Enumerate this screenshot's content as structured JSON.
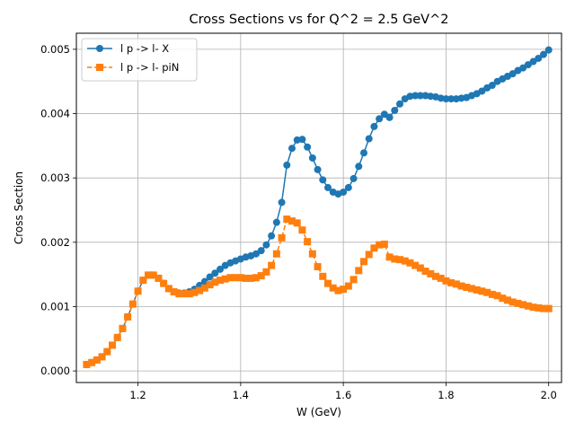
{
  "chart_data": {
    "type": "line",
    "title": "Cross Sections vs  for Q^2 = 2.5 GeV^2",
    "xlabel": "W (GeV)",
    "ylabel": "Cross Section",
    "xlim": [
      1.08,
      2.025
    ],
    "ylim": [
      -0.00018,
      0.00525
    ],
    "grid": true,
    "legend_position": "top-left",
    "x_ticks": [
      {
        "value": 1.2,
        "label": "1.2"
      },
      {
        "value": 1.4,
        "label": "1.4"
      },
      {
        "value": 1.6,
        "label": "1.6"
      },
      {
        "value": 1.8,
        "label": "1.8"
      },
      {
        "value": 2.0,
        "label": "2.0"
      }
    ],
    "y_ticks": [
      {
        "value": 0.0,
        "label": "0.000"
      },
      {
        "value": 0.001,
        "label": "0.001"
      },
      {
        "value": 0.002,
        "label": "0.002"
      },
      {
        "value": 0.003,
        "label": "0.003"
      },
      {
        "value": 0.004,
        "label": "0.004"
      },
      {
        "value": 0.005,
        "label": "0.005"
      }
    ],
    "x": [
      1.1,
      1.11,
      1.12,
      1.13,
      1.14,
      1.15,
      1.16,
      1.17,
      1.18,
      1.19,
      1.2,
      1.21,
      1.22,
      1.23,
      1.24,
      1.25,
      1.26,
      1.27,
      1.28,
      1.29,
      1.3,
      1.31,
      1.32,
      1.33,
      1.34,
      1.35,
      1.36,
      1.37,
      1.38,
      1.39,
      1.4,
      1.41,
      1.42,
      1.43,
      1.44,
      1.45,
      1.46,
      1.47,
      1.48,
      1.49,
      1.5,
      1.51,
      1.52,
      1.53,
      1.54,
      1.55,
      1.56,
      1.57,
      1.58,
      1.59,
      1.6,
      1.61,
      1.62,
      1.63,
      1.64,
      1.65,
      1.66,
      1.67,
      1.68,
      1.69,
      1.7,
      1.71,
      1.72,
      1.73,
      1.74,
      1.75,
      1.76,
      1.77,
      1.78,
      1.79,
      1.8,
      1.81,
      1.82,
      1.83,
      1.84,
      1.85,
      1.86,
      1.87,
      1.88,
      1.89,
      1.9,
      1.91,
      1.92,
      1.93,
      1.94,
      1.95,
      1.96,
      1.97,
      1.98,
      1.99,
      2.0
    ],
    "series": [
      {
        "name": "l p -> l- X",
        "color": "#1f77b4",
        "marker": "circle",
        "linestyle": "solid",
        "values": [
          0.0001,
          0.00013,
          0.00017,
          0.00022,
          0.0003,
          0.0004,
          0.00052,
          0.00066,
          0.00084,
          0.00104,
          0.00124,
          0.00141,
          0.00149,
          0.00149,
          0.00144,
          0.00136,
          0.00128,
          0.00123,
          0.00121,
          0.00121,
          0.00123,
          0.00127,
          0.00133,
          0.00139,
          0.00146,
          0.00152,
          0.00158,
          0.00164,
          0.00168,
          0.00171,
          0.00174,
          0.00177,
          0.00179,
          0.00182,
          0.00187,
          0.00196,
          0.0021,
          0.00231,
          0.00262,
          0.0032,
          0.00346,
          0.00359,
          0.0036,
          0.00348,
          0.00331,
          0.00313,
          0.00297,
          0.00285,
          0.00278,
          0.00275,
          0.00278,
          0.00285,
          0.00299,
          0.00318,
          0.00339,
          0.00361,
          0.0038,
          0.00392,
          0.00399,
          0.00394,
          0.00405,
          0.00415,
          0.00423,
          0.00427,
          0.00428,
          0.00428,
          0.00428,
          0.00427,
          0.00426,
          0.00424,
          0.00423,
          0.00423,
          0.00423,
          0.00424,
          0.00425,
          0.00428,
          0.00431,
          0.00435,
          0.0044,
          0.00444,
          0.0045,
          0.00454,
          0.00458,
          0.00462,
          0.00467,
          0.00471,
          0.00476,
          0.00481,
          0.00486,
          0.00492,
          0.00499
        ]
      },
      {
        "name": "l p -> l- piN",
        "color": "#ff7f0e",
        "marker": "square",
        "linestyle": "dashed",
        "values": [
          0.0001,
          0.00013,
          0.00017,
          0.00022,
          0.0003,
          0.0004,
          0.00052,
          0.00066,
          0.00084,
          0.00104,
          0.00124,
          0.00141,
          0.00149,
          0.00149,
          0.00144,
          0.00136,
          0.00128,
          0.00123,
          0.0012,
          0.0012,
          0.0012,
          0.00122,
          0.00125,
          0.00129,
          0.00134,
          0.00138,
          0.00141,
          0.00143,
          0.00145,
          0.00145,
          0.00145,
          0.00144,
          0.00144,
          0.00145,
          0.00148,
          0.00154,
          0.00164,
          0.00182,
          0.00207,
          0.00236,
          0.00233,
          0.0023,
          0.00219,
          0.00201,
          0.00182,
          0.00162,
          0.00147,
          0.00136,
          0.00129,
          0.00125,
          0.00127,
          0.00132,
          0.00142,
          0.00156,
          0.0017,
          0.00181,
          0.00191,
          0.00196,
          0.00197,
          0.00177,
          0.00174,
          0.00173,
          0.00171,
          0.00168,
          0.00164,
          0.0016,
          0.00155,
          0.00151,
          0.00147,
          0.00144,
          0.0014,
          0.00137,
          0.00135,
          0.00132,
          0.0013,
          0.00128,
          0.00126,
          0.00124,
          0.00122,
          0.00119,
          0.00117,
          0.00113,
          0.0011,
          0.00107,
          0.00105,
          0.00103,
          0.00101,
          0.00099,
          0.00098,
          0.00097,
          0.00097
        ]
      }
    ]
  }
}
